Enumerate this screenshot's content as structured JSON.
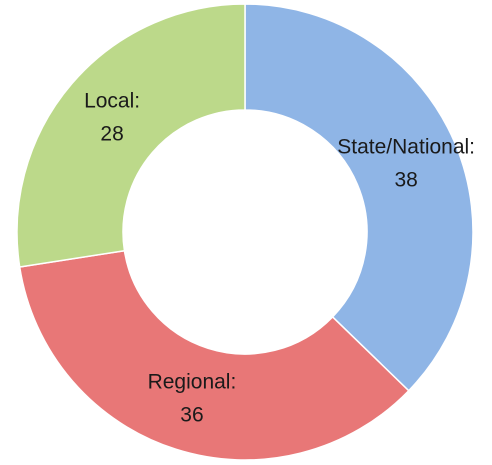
{
  "chart_data": {
    "type": "donut",
    "categories": [
      "State/National:",
      "Regional:",
      "Local:"
    ],
    "values": [
      38,
      36,
      28
    ],
    "colors": [
      "#8fb5e6",
      "#e87777",
      "#bcd98a"
    ]
  }
}
